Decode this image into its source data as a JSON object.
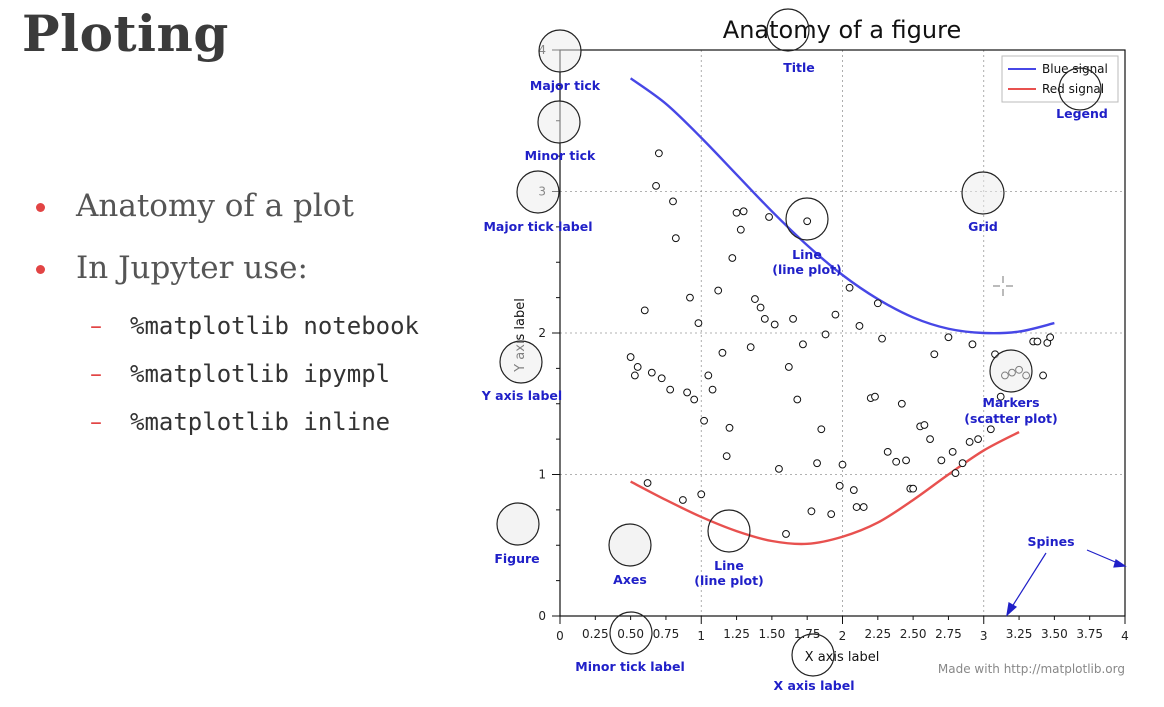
{
  "slide": {
    "title": "Ploting",
    "bullets": [
      "Anatomy of a plot",
      "In Jupyter use:"
    ],
    "subitems": [
      "%matplotlib notebook",
      "%matplotlib ipympl",
      "%matplotlib inline"
    ]
  },
  "figure": {
    "footer": "Made with http://matplotlib.org",
    "callouts": {
      "title": "Title",
      "major_tick": "Major tick",
      "minor_tick": "Minor tick",
      "major_tick_label": "Major tick label",
      "grid": "Grid",
      "legend": "Legend",
      "line_top_1": "Line",
      "line_top_2": "(line plot)",
      "y_axis_label": "Y axis label",
      "markers_1": "Markers",
      "markers_2": "(scatter plot)",
      "figure": "Figure",
      "axes": "Axes",
      "line_bottom_1": "Line",
      "line_bottom_2": "(line plot)",
      "spines": "Spines",
      "minor_tick_label": "Minor tick label",
      "x_axis_label": "X axis label"
    },
    "colors": {
      "callout": "#2020c8",
      "blue_signal": "#4747e6",
      "red_signal": "#e8514f",
      "slide_bullet": "#e24444"
    }
  },
  "chart_data": {
    "type": "line",
    "title": "Anatomy of a figure",
    "xlabel": "X axis label",
    "ylabel": "Y axis label",
    "xlim": [
      0,
      4
    ],
    "ylim": [
      0,
      4
    ],
    "grid": true,
    "legend_position": "top-right",
    "x_major_ticks": [
      0,
      1,
      2,
      3,
      4
    ],
    "x_major_tick_labels": [
      "0",
      "1",
      "2",
      "3",
      "4"
    ],
    "x_minor_ticks": [
      0.25,
      0.5,
      0.75,
      1.25,
      1.5,
      1.75,
      2.25,
      2.5,
      2.75,
      3.25,
      3.5,
      3.75
    ],
    "x_minor_tick_labels": [
      "0.25",
      "0.50",
      "0.75",
      "1.25",
      "1.50",
      "1.75",
      "2.25",
      "2.50",
      "2.75",
      "3.25",
      "3.50",
      "3.75"
    ],
    "y_major_ticks": [
      0,
      1,
      2,
      3,
      4
    ],
    "y_major_tick_labels": [
      "0",
      "1",
      "2",
      "3",
      "4"
    ],
    "series": [
      {
        "name": "Blue signal",
        "kind": "line",
        "color": "#4747e6",
        "x": [
          0.5,
          0.75,
          1.0,
          1.25,
          1.5,
          1.75,
          2.0,
          2.25,
          2.5,
          2.75,
          3.0,
          3.25,
          3.5
        ],
        "y": [
          3.8,
          3.62,
          3.38,
          3.12,
          2.86,
          2.62,
          2.41,
          2.24,
          2.11,
          2.03,
          2.0,
          2.01,
          2.07
        ]
      },
      {
        "name": "Red signal",
        "kind": "line",
        "color": "#e8514f",
        "x": [
          0.5,
          0.75,
          1.0,
          1.25,
          1.5,
          1.75,
          2.0,
          2.25,
          2.5,
          2.75,
          3.0,
          3.25
        ],
        "y": [
          0.95,
          0.82,
          0.7,
          0.6,
          0.53,
          0.51,
          0.56,
          0.66,
          0.82,
          1.0,
          1.17,
          1.3
        ]
      },
      {
        "name": "",
        "kind": "scatter",
        "points": [
          [
            0.5,
            1.83
          ],
          [
            0.53,
            1.7
          ],
          [
            0.55,
            1.76
          ],
          [
            0.6,
            2.16
          ],
          [
            0.62,
            0.94
          ],
          [
            0.65,
            1.72
          ],
          [
            0.68,
            3.04
          ],
          [
            0.7,
            3.27
          ],
          [
            0.72,
            1.68
          ],
          [
            0.78,
            1.6
          ],
          [
            0.8,
            2.93
          ],
          [
            0.82,
            2.67
          ],
          [
            0.87,
            0.82
          ],
          [
            0.9,
            1.58
          ],
          [
            0.92,
            2.25
          ],
          [
            0.95,
            1.53
          ],
          [
            0.98,
            2.07
          ],
          [
            1.0,
            0.86
          ],
          [
            1.02,
            1.38
          ],
          [
            1.05,
            1.7
          ],
          [
            1.08,
            1.6
          ],
          [
            1.12,
            2.3
          ],
          [
            1.15,
            1.86
          ],
          [
            1.18,
            1.13
          ],
          [
            1.2,
            1.33
          ],
          [
            1.22,
            2.53
          ],
          [
            1.25,
            2.85
          ],
          [
            1.28,
            2.73
          ],
          [
            1.3,
            2.86
          ],
          [
            1.35,
            1.9
          ],
          [
            1.38,
            2.24
          ],
          [
            1.42,
            2.18
          ],
          [
            1.45,
            2.1
          ],
          [
            1.48,
            2.82
          ],
          [
            1.52,
            2.06
          ],
          [
            1.55,
            1.04
          ],
          [
            1.6,
            0.58
          ],
          [
            1.62,
            1.76
          ],
          [
            1.65,
            2.1
          ],
          [
            1.68,
            1.53
          ],
          [
            1.72,
            1.92
          ],
          [
            1.75,
            2.79
          ],
          [
            1.78,
            0.74
          ],
          [
            1.82,
            1.08
          ],
          [
            1.85,
            1.32
          ],
          [
            1.88,
            1.99
          ],
          [
            1.92,
            0.72
          ],
          [
            1.95,
            2.13
          ],
          [
            1.98,
            0.92
          ],
          [
            2.0,
            1.07
          ],
          [
            2.05,
            2.32
          ],
          [
            2.08,
            0.89
          ],
          [
            2.1,
            0.77
          ],
          [
            2.12,
            2.05
          ],
          [
            2.15,
            0.77
          ],
          [
            2.2,
            1.54
          ],
          [
            2.23,
            1.55
          ],
          [
            2.25,
            2.21
          ],
          [
            2.28,
            1.96
          ],
          [
            2.32,
            1.16
          ],
          [
            2.38,
            1.09
          ],
          [
            2.42,
            1.5
          ],
          [
            2.45,
            1.1
          ],
          [
            2.48,
            0.9
          ],
          [
            2.5,
            0.9
          ],
          [
            2.55,
            1.34
          ],
          [
            2.58,
            1.35
          ],
          [
            2.62,
            1.25
          ],
          [
            2.65,
            1.85
          ],
          [
            2.7,
            1.1
          ],
          [
            2.75,
            1.97
          ],
          [
            2.78,
            1.16
          ],
          [
            2.8,
            1.01
          ],
          [
            2.85,
            1.08
          ],
          [
            2.9,
            1.23
          ],
          [
            2.92,
            1.92
          ],
          [
            2.96,
            1.25
          ],
          [
            3.05,
            1.32
          ],
          [
            3.08,
            1.85
          ],
          [
            3.12,
            1.55
          ],
          [
            3.15,
            1.7
          ],
          [
            3.2,
            1.72
          ],
          [
            3.25,
            1.74
          ],
          [
            3.3,
            1.7
          ],
          [
            3.35,
            1.94
          ],
          [
            3.38,
            1.94
          ],
          [
            3.42,
            1.7
          ],
          [
            3.45,
            1.93
          ],
          [
            3.47,
            1.97
          ]
        ]
      }
    ]
  }
}
